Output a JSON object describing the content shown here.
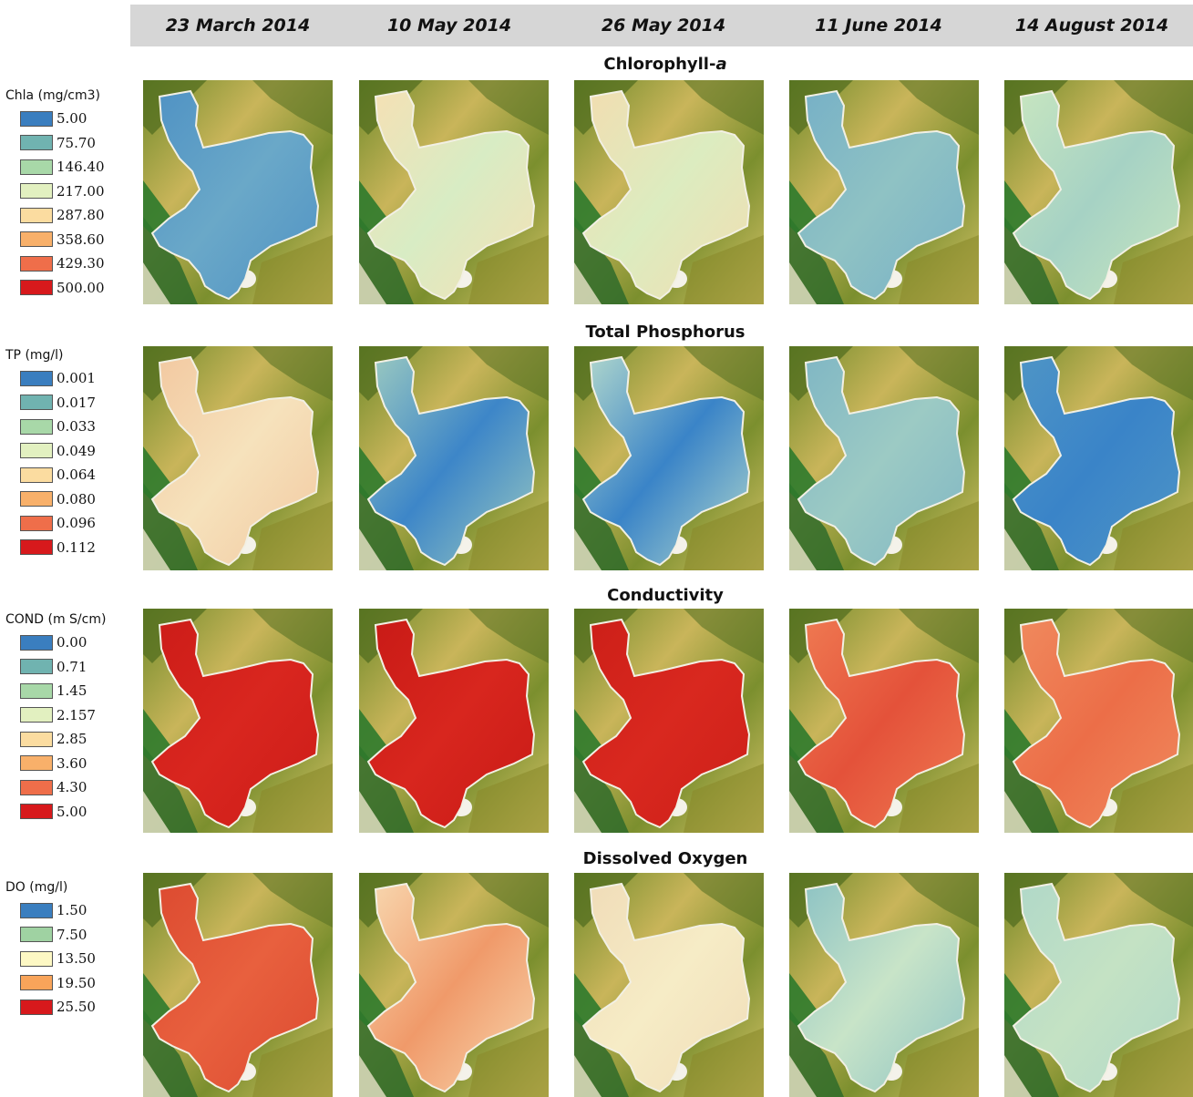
{
  "dates": [
    "23 March 2014",
    "10 May 2014",
    "26 May 2014",
    "11 June 2014",
    "14 August 2014"
  ],
  "rows": [
    {
      "title": "Chlorophyll-",
      "title_italic": "a",
      "legend_title": "Chla (mg/cm3)",
      "legend": [
        {
          "label": "5.00",
          "color": "#3a7ebf"
        },
        {
          "label": "75.70",
          "color": "#70b3b0"
        },
        {
          "label": "146.40",
          "color": "#a8d8a8"
        },
        {
          "label": "217.00",
          "color": "#e2f0c0"
        },
        {
          "label": "287.80",
          "color": "#fbdca0"
        },
        {
          "label": "358.60",
          "color": "#f8b06a"
        },
        {
          "label": "429.30",
          "color": "#ef6e4a"
        },
        {
          "label": "500.00",
          "color": "#d7191c"
        }
      ],
      "lake_colors": [
        "#6aa8c8",
        "#d8ecc4",
        "#dcecc0",
        "#8fc2c4",
        "#a6d2c4"
      ],
      "lake_secondary": [
        "#4f92c4",
        "#f6e0b4",
        "#f2ddb0",
        "#76b0c6",
        "#c8e6c0"
      ]
    },
    {
      "title": "Total Phosphorus",
      "legend_title": "TP (mg/l)",
      "legend": [
        {
          "label": "0.001",
          "color": "#3a7ebf"
        },
        {
          "label": "0.017",
          "color": "#70b3b0"
        },
        {
          "label": "0.033",
          "color": "#a8d8a8"
        },
        {
          "label": "0.049",
          "color": "#e2f0c0"
        },
        {
          "label": "0.064",
          "color": "#fbdca0"
        },
        {
          "label": "0.080",
          "color": "#f8b06a"
        },
        {
          "label": "0.096",
          "color": "#ef6e4a"
        },
        {
          "label": "0.112",
          "color": "#d7191c"
        }
      ],
      "lake_colors": [
        "#f6e2bc",
        "#3d86c8",
        "#3a84c8",
        "#9ccac4",
        "#3a84c8"
      ],
      "lake_secondary": [
        "#f2c8a0",
        "#9ccac0",
        "#b2d8cc",
        "#7fb6c4",
        "#4f95c6"
      ]
    },
    {
      "title": "Conductivity",
      "legend_title": "COND (m S/cm)",
      "legend": [
        {
          "label": "0.00",
          "color": "#3a7ebf"
        },
        {
          "label": "0.71",
          "color": "#70b3b0"
        },
        {
          "label": "1.45",
          "color": "#a8d8a8"
        },
        {
          "label": "2.157",
          "color": "#e2f0c0"
        },
        {
          "label": "2.85",
          "color": "#fbdca0"
        },
        {
          "label": "3.60",
          "color": "#f8b06a"
        },
        {
          "label": "4.30",
          "color": "#ef6e4a"
        },
        {
          "label": "5.00",
          "color": "#d7191c"
        }
      ],
      "lake_colors": [
        "#d9261f",
        "#d8261e",
        "#d9281f",
        "#e4523a",
        "#ec6e48"
      ],
      "lake_secondary": [
        "#cc1c18",
        "#c81a16",
        "#cc1f18",
        "#ef7a52",
        "#f08a5e"
      ]
    },
    {
      "title": "Dissolved Oxygen",
      "legend_title": "DO (mg/l)",
      "legend": [
        {
          "label": "1.50",
          "color": "#3a7ebf"
        },
        {
          "label": "7.50",
          "color": "#9fd2a2"
        },
        {
          "label": "13.50",
          "color": "#fdf8c4"
        },
        {
          "label": "19.50",
          "color": "#f8a45a"
        },
        {
          "label": "25.50",
          "color": "#d7191c"
        }
      ],
      "lake_colors": [
        "#e8603e",
        "#f09a6a",
        "#f6ecc6",
        "#c8e4c8",
        "#c4e2c4"
      ],
      "lake_secondary": [
        "#dc4a30",
        "#f8d8b0",
        "#f0dcb8",
        "#8cc2c4",
        "#b0d8c8"
      ]
    }
  ]
}
